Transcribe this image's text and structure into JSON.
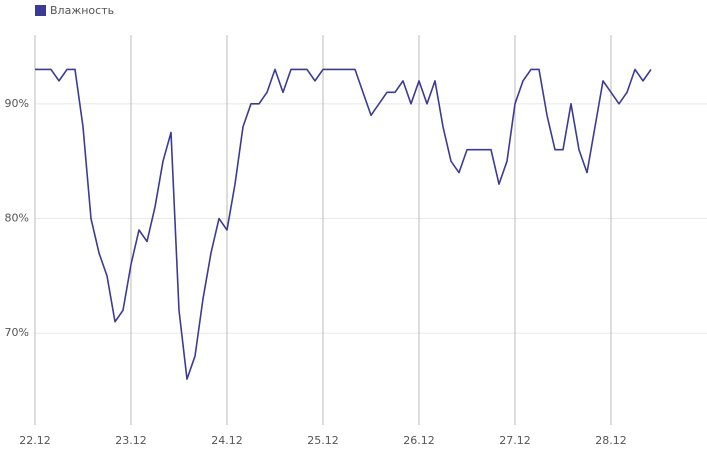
{
  "chart_data": {
    "type": "line",
    "categories": [
      "22.12",
      null,
      null,
      null,
      null,
      null,
      null,
      null,
      null,
      null,
      null,
      null,
      "23.12",
      null,
      null,
      null,
      null,
      null,
      null,
      null,
      null,
      null,
      null,
      null,
      "24.12",
      null,
      null,
      null,
      null,
      null,
      null,
      null,
      null,
      null,
      null,
      null,
      "25.12",
      null,
      null,
      null,
      null,
      null,
      null,
      null,
      null,
      null,
      null,
      null,
      "26.12",
      null,
      null,
      null,
      null,
      null,
      null,
      null,
      null,
      null,
      null,
      null,
      "27.12",
      null,
      null,
      null,
      null,
      null,
      null,
      null,
      null,
      null,
      null,
      null,
      "28.12",
      null,
      null,
      null,
      null,
      null
    ],
    "series": [
      {
        "name": "Влажность",
        "color": "#3b3b96",
        "values": [
          93,
          93,
          93,
          92,
          93,
          93,
          88,
          80,
          77,
          75,
          71,
          72,
          76,
          79,
          78,
          81,
          85,
          87.5,
          72,
          66,
          68,
          73,
          77,
          80,
          79,
          83,
          88,
          90,
          90,
          91,
          93,
          91,
          93,
          93,
          93,
          92,
          93,
          93,
          93,
          93,
          93,
          91,
          89,
          90,
          91,
          91,
          92,
          90,
          92,
          90,
          92,
          88,
          85,
          84,
          86,
          86,
          86,
          86,
          83,
          85,
          90,
          92,
          93,
          93,
          89,
          86,
          86,
          90,
          86,
          84,
          88,
          92,
          91,
          90,
          91,
          93,
          92,
          93
        ]
      }
    ],
    "ylim": [
      62,
      96
    ],
    "yticks": [
      {
        "value": 70,
        "label": "70%"
      },
      {
        "value": 80,
        "label": "80%"
      },
      {
        "value": 90,
        "label": "90%"
      }
    ],
    "grid": true
  }
}
